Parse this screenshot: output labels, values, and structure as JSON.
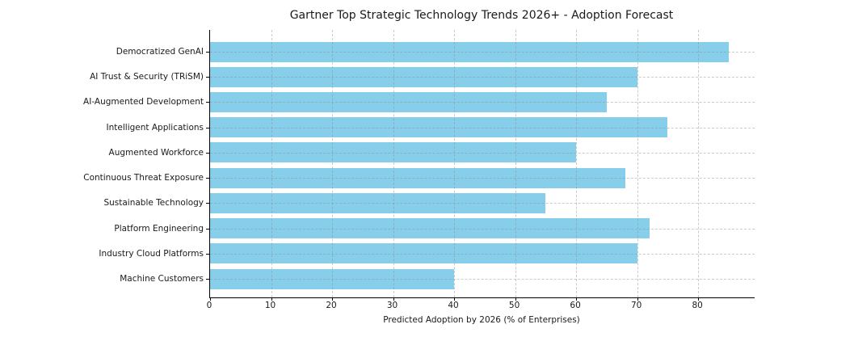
{
  "chart_data": {
    "type": "bar",
    "orientation": "horizontal",
    "title": "Gartner Top Strategic Technology Trends 2026+ - Adoption Forecast",
    "xlabel": "Predicted Adoption by 2026 (% of Enterprises)",
    "ylabel": "",
    "categories": [
      "Democratized GenAI",
      "AI Trust & Security (TRiSM)",
      "AI-Augmented Development",
      "Intelligent Applications",
      "Augmented Workforce",
      "Continuous Threat Exposure",
      "Sustainable Technology",
      "Platform Engineering",
      "Industry Cloud Platforms",
      "Machine Customers"
    ],
    "values": [
      85,
      70,
      65,
      75,
      60,
      68,
      55,
      72,
      70,
      40
    ],
    "xticks": [
      0,
      10,
      20,
      30,
      40,
      50,
      60,
      70,
      80
    ],
    "xlim": [
      0,
      89.25
    ],
    "grid": true,
    "grid_style": "dashed",
    "legend": "none",
    "bar_color": "#87CEEB",
    "grid_color": "#8c8c8c",
    "axis_color": "#000000",
    "text_color": "#1a1a1a",
    "background_color": "#ffffff"
  }
}
